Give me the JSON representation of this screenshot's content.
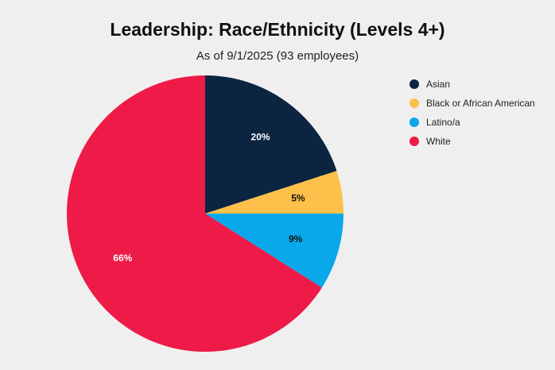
{
  "chart_data": {
    "type": "pie",
    "title": "Leadership: Race/Ethnicity (Levels 4+)",
    "subtitle": "As of 9/1/2025 (93 employees)",
    "legend_position": "right",
    "series": [
      {
        "name": "Asian",
        "value": 20,
        "label": "20%",
        "color": "#0b2440",
        "label_color": "#ffffff"
      },
      {
        "name": "Black or African American",
        "value": 5,
        "label": "5%",
        "color": "#fcc04b",
        "label_color": "#111111"
      },
      {
        "name": "Latino/a",
        "value": 9,
        "label": "9%",
        "color": "#09a8ea",
        "label_color": "#111111"
      },
      {
        "name": "White",
        "value": 66,
        "label": "66%",
        "color": "#ee1a48",
        "label_color": "#ffffff"
      }
    ]
  }
}
